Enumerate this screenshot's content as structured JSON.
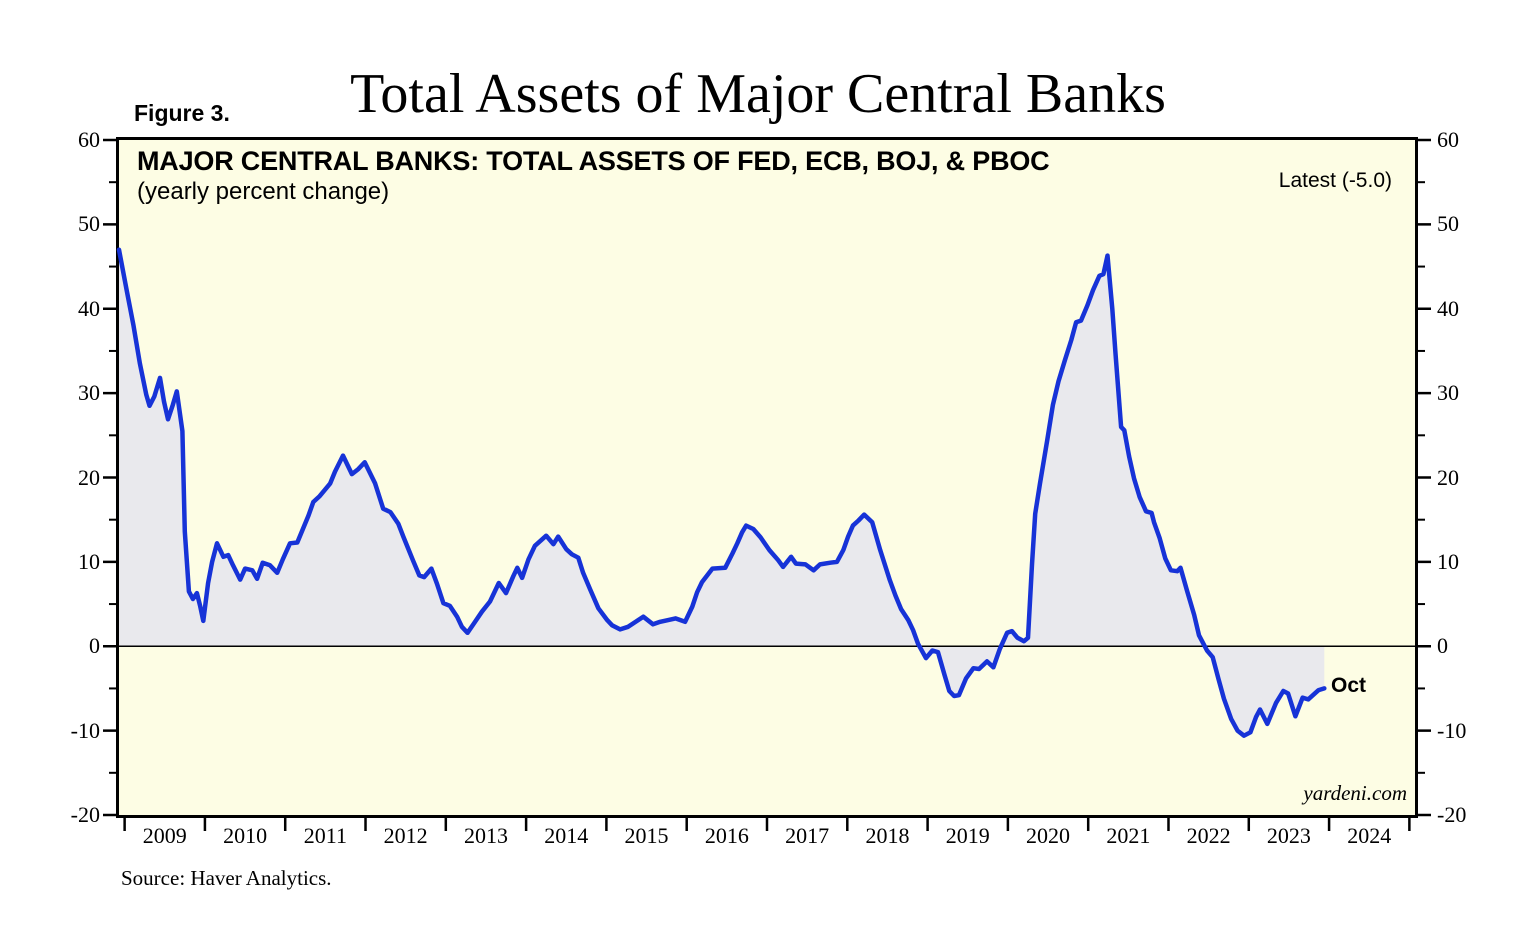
{
  "page": {
    "title": "Total Assets of Major Central Banks",
    "figure_label": "Figure 3.",
    "source_note": "Source: Haver Analytics."
  },
  "chart": {
    "header": "MAJOR CENTRAL BANKS: TOTAL ASSETS OF FED, ECB, BOJ, & PBOC",
    "subheader": "(yearly percent change)",
    "latest_label": "Latest (-5.0)",
    "latest_value": -5.0,
    "end_point_label": "Oct",
    "watermark": "yardeni.com",
    "colors": {
      "line_blue": "#1733d7",
      "area_fill_gray": "#e9e9ed",
      "plot_background": "#fdfde4",
      "axis_black": "#000000"
    }
  },
  "chart_data": {
    "type": "line",
    "title": "MAJOR CENTRAL BANKS: TOTAL ASSETS OF FED, ECB, BOJ, & PBOC",
    "subtitle": "(yearly percent change)",
    "xlabel": "",
    "ylabel": "yearly percent change (%)",
    "grid": false,
    "fill_to_zero": true,
    "zero_line": true,
    "x_axis": {
      "min": 2008.93,
      "max": 2025.07,
      "year_ticks": [
        2009,
        2010,
        2011,
        2012,
        2013,
        2014,
        2015,
        2016,
        2017,
        2018,
        2019,
        2020,
        2021,
        2022,
        2023,
        2024,
        2025
      ],
      "year_labels": [
        "2009",
        "2010",
        "2011",
        "2012",
        "2013",
        "2014",
        "2015",
        "2016",
        "2017",
        "2018",
        "2019",
        "2020",
        "2021",
        "2022",
        "2023",
        "2024"
      ]
    },
    "y_axis": {
      "min": -20,
      "max": 60,
      "major_ticks": [
        60,
        50,
        40,
        30,
        20,
        10,
        0,
        -10,
        -20
      ],
      "minor_ticks": [
        55,
        45,
        35,
        25,
        15,
        5,
        -5,
        -15
      ]
    },
    "series": [
      {
        "name": "Total assets of Fed, ECB, BOJ & PBOC (yoy % change)",
        "last_point_label": "Oct",
        "last_value": -5.0,
        "points": [
          [
            2008.93,
            47.0
          ],
          [
            2009.03,
            42.0
          ],
          [
            2009.11,
            38.0
          ],
          [
            2009.19,
            33.5
          ],
          [
            2009.27,
            29.8
          ],
          [
            2009.31,
            28.5
          ],
          [
            2009.37,
            29.6
          ],
          [
            2009.44,
            31.8
          ],
          [
            2009.49,
            29.0
          ],
          [
            2009.54,
            26.9
          ],
          [
            2009.6,
            28.6
          ],
          [
            2009.65,
            30.2
          ],
          [
            2009.72,
            25.5
          ],
          [
            2009.75,
            13.6
          ],
          [
            2009.8,
            6.5
          ],
          [
            2009.85,
            5.6
          ],
          [
            2009.9,
            6.3
          ],
          [
            2009.94,
            4.8
          ],
          [
            2009.98,
            3.0
          ],
          [
            2010.04,
            7.5
          ],
          [
            2010.09,
            10.0
          ],
          [
            2010.15,
            12.2
          ],
          [
            2010.23,
            10.6
          ],
          [
            2010.29,
            10.8
          ],
          [
            2010.35,
            9.6
          ],
          [
            2010.44,
            7.9
          ],
          [
            2010.5,
            9.2
          ],
          [
            2010.59,
            9.0
          ],
          [
            2010.65,
            8.0
          ],
          [
            2010.72,
            9.9
          ],
          [
            2010.81,
            9.6
          ],
          [
            2010.9,
            8.7
          ],
          [
            2010.97,
            10.3
          ],
          [
            2011.06,
            12.2
          ],
          [
            2011.15,
            12.3
          ],
          [
            2011.29,
            15.5
          ],
          [
            2011.35,
            17.1
          ],
          [
            2011.43,
            17.8
          ],
          [
            2011.56,
            19.3
          ],
          [
            2011.62,
            20.7
          ],
          [
            2011.72,
            22.6
          ],
          [
            2011.83,
            20.4
          ],
          [
            2011.91,
            21.0
          ],
          [
            2011.99,
            21.8
          ],
          [
            2012.12,
            19.3
          ],
          [
            2012.22,
            16.3
          ],
          [
            2012.31,
            15.9
          ],
          [
            2012.41,
            14.5
          ],
          [
            2012.47,
            13.0
          ],
          [
            2012.53,
            11.6
          ],
          [
            2012.59,
            10.2
          ],
          [
            2012.67,
            8.4
          ],
          [
            2012.73,
            8.2
          ],
          [
            2012.82,
            9.2
          ],
          [
            2012.89,
            7.4
          ],
          [
            2012.97,
            5.1
          ],
          [
            2013.05,
            4.8
          ],
          [
            2013.14,
            3.5
          ],
          [
            2013.2,
            2.3
          ],
          [
            2013.27,
            1.6
          ],
          [
            2013.35,
            2.7
          ],
          [
            2013.45,
            4.1
          ],
          [
            2013.55,
            5.3
          ],
          [
            2013.66,
            7.5
          ],
          [
            2013.75,
            6.3
          ],
          [
            2013.84,
            8.3
          ],
          [
            2013.89,
            9.3
          ],
          [
            2013.95,
            8.1
          ],
          [
            2014.03,
            10.3
          ],
          [
            2014.11,
            11.9
          ],
          [
            2014.25,
            13.1
          ],
          [
            2014.34,
            12.1
          ],
          [
            2014.4,
            13.0
          ],
          [
            2014.5,
            11.5
          ],
          [
            2014.57,
            10.9
          ],
          [
            2014.65,
            10.5
          ],
          [
            2014.71,
            8.7
          ],
          [
            2014.8,
            6.7
          ],
          [
            2014.9,
            4.5
          ],
          [
            2015.01,
            3.1
          ],
          [
            2015.07,
            2.5
          ],
          [
            2015.17,
            2.0
          ],
          [
            2015.27,
            2.3
          ],
          [
            2015.46,
            3.5
          ],
          [
            2015.58,
            2.6
          ],
          [
            2015.67,
            2.9
          ],
          [
            2015.77,
            3.1
          ],
          [
            2015.86,
            3.3
          ],
          [
            2015.98,
            2.9
          ],
          [
            2016.07,
            4.7
          ],
          [
            2016.13,
            6.4
          ],
          [
            2016.19,
            7.6
          ],
          [
            2016.32,
            9.2
          ],
          [
            2016.48,
            9.3
          ],
          [
            2016.57,
            11.0
          ],
          [
            2016.63,
            12.2
          ],
          [
            2016.69,
            13.5
          ],
          [
            2016.74,
            14.3
          ],
          [
            2016.83,
            13.9
          ],
          [
            2016.92,
            12.9
          ],
          [
            2017.03,
            11.4
          ],
          [
            2017.14,
            10.2
          ],
          [
            2017.2,
            9.4
          ],
          [
            2017.3,
            10.6
          ],
          [
            2017.36,
            9.8
          ],
          [
            2017.48,
            9.7
          ],
          [
            2017.58,
            9.0
          ],
          [
            2017.66,
            9.7
          ],
          [
            2017.79,
            9.9
          ],
          [
            2017.87,
            10.0
          ],
          [
            2017.95,
            11.4
          ],
          [
            2018.01,
            13.0
          ],
          [
            2018.07,
            14.3
          ],
          [
            2018.14,
            14.9
          ],
          [
            2018.21,
            15.6
          ],
          [
            2018.31,
            14.7
          ],
          [
            2018.41,
            11.4
          ],
          [
            2018.53,
            7.8
          ],
          [
            2018.6,
            6.0
          ],
          [
            2018.67,
            4.4
          ],
          [
            2018.76,
            3.1
          ],
          [
            2018.82,
            1.9
          ],
          [
            2018.88,
            0.3
          ],
          [
            2018.95,
            -0.9
          ],
          [
            2018.98,
            -1.4
          ],
          [
            2019.06,
            -0.5
          ],
          [
            2019.13,
            -0.7
          ],
          [
            2019.21,
            -3.4
          ],
          [
            2019.27,
            -5.3
          ],
          [
            2019.33,
            -5.9
          ],
          [
            2019.39,
            -5.8
          ],
          [
            2019.48,
            -3.8
          ],
          [
            2019.57,
            -2.6
          ],
          [
            2019.64,
            -2.7
          ],
          [
            2019.74,
            -1.8
          ],
          [
            2019.82,
            -2.5
          ],
          [
            2019.9,
            -0.3
          ],
          [
            2019.99,
            1.6
          ],
          [
            2020.05,
            1.8
          ],
          [
            2020.12,
            1.0
          ],
          [
            2020.2,
            0.6
          ],
          [
            2020.25,
            1.0
          ],
          [
            2020.3,
            9.7
          ],
          [
            2020.34,
            15.7
          ],
          [
            2020.4,
            19.3
          ],
          [
            2020.49,
            24.4
          ],
          [
            2020.56,
            28.6
          ],
          [
            2020.63,
            31.4
          ],
          [
            2020.71,
            33.9
          ],
          [
            2020.79,
            36.3
          ],
          [
            2020.85,
            38.4
          ],
          [
            2020.91,
            38.6
          ],
          [
            2020.99,
            40.4
          ],
          [
            2021.06,
            42.2
          ],
          [
            2021.14,
            43.9
          ],
          [
            2021.19,
            44.1
          ],
          [
            2021.24,
            46.3
          ],
          [
            2021.3,
            40.0
          ],
          [
            2021.34,
            34.7
          ],
          [
            2021.41,
            26.0
          ],
          [
            2021.45,
            25.6
          ],
          [
            2021.51,
            22.5
          ],
          [
            2021.57,
            19.9
          ],
          [
            2021.64,
            17.7
          ],
          [
            2021.72,
            16.0
          ],
          [
            2021.79,
            15.8
          ],
          [
            2021.82,
            14.7
          ],
          [
            2021.89,
            12.8
          ],
          [
            2021.96,
            10.4
          ],
          [
            2022.03,
            9.0
          ],
          [
            2022.11,
            8.9
          ],
          [
            2022.15,
            9.3
          ],
          [
            2022.23,
            6.6
          ],
          [
            2022.32,
            3.7
          ],
          [
            2022.38,
            1.3
          ],
          [
            2022.48,
            -0.5
          ],
          [
            2022.55,
            -1.3
          ],
          [
            2022.62,
            -3.8
          ],
          [
            2022.69,
            -6.2
          ],
          [
            2022.78,
            -8.6
          ],
          [
            2022.86,
            -10.0
          ],
          [
            2022.94,
            -10.6
          ],
          [
            2023.02,
            -10.2
          ],
          [
            2023.09,
            -8.4
          ],
          [
            2023.14,
            -7.5
          ],
          [
            2023.23,
            -9.2
          ],
          [
            2023.34,
            -6.7
          ],
          [
            2023.43,
            -5.3
          ],
          [
            2023.49,
            -5.6
          ],
          [
            2023.58,
            -8.3
          ],
          [
            2023.67,
            -6.1
          ],
          [
            2023.74,
            -6.3
          ],
          [
            2023.87,
            -5.2
          ],
          [
            2023.94,
            -5.0
          ]
        ]
      }
    ]
  }
}
